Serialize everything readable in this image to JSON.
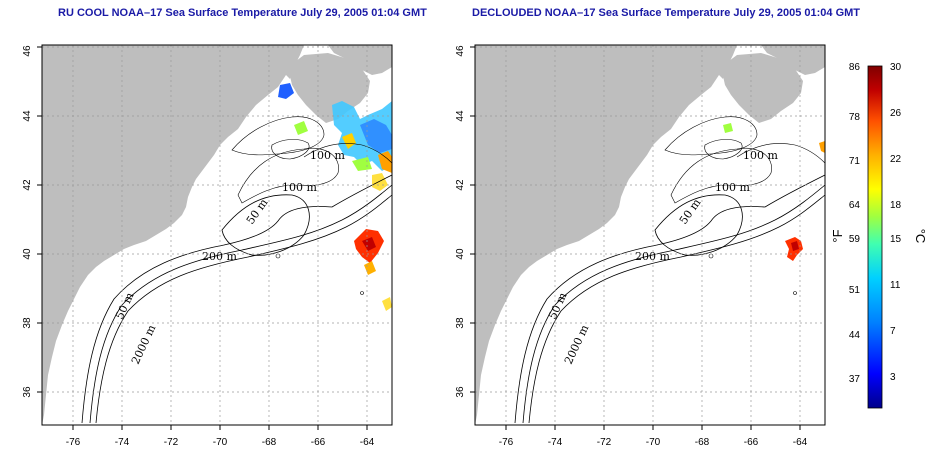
{
  "panels": [
    {
      "id": "left",
      "title": "RU COOL NOAA–17 Sea Surface Temperature July 29, 2005 01:04 GMT",
      "x_ticks": [
        "-76",
        "-74",
        "-72",
        "-70",
        "-68",
        "-66",
        "-64"
      ],
      "y_ticks": [
        "36",
        "38",
        "40",
        "42",
        "44",
        "46"
      ],
      "contour_labels": [
        "100 m",
        "100 m",
        "50 m",
        "200 m",
        "50 m",
        "2000 m"
      ]
    },
    {
      "id": "right",
      "title": "DECLOUDED NOAA–17 Sea Surface Temperature July 29, 2005 01:04 GMT",
      "x_ticks": [
        "-76",
        "-74",
        "-72",
        "-70",
        "-68",
        "-66",
        "-64"
      ],
      "y_ticks": [
        "36",
        "38",
        "40",
        "42",
        "44",
        "46"
      ],
      "contour_labels": [
        "100 m",
        "100 m",
        "50 m",
        "200 m",
        "50 m",
        "2000 m"
      ]
    }
  ],
  "colorbar": {
    "fahrenheit_labels": [
      "86",
      "78",
      "71",
      "64",
      "59",
      "51",
      "44",
      "37"
    ],
    "celsius_labels": [
      "30",
      "26",
      "22",
      "18",
      "15",
      "11",
      "7",
      "3"
    ],
    "fahrenheit_unit": "°F",
    "celsius_unit": "°C",
    "colors": [
      "#00008b",
      "#0000ff",
      "#0080ff",
      "#00d0ff",
      "#40ffb0",
      "#a0ff40",
      "#ffff00",
      "#ffb000",
      "#ff5000",
      "#c00000",
      "#800000"
    ]
  },
  "colors": {
    "land": "#bebebe",
    "title": "#1a1aa6"
  }
}
